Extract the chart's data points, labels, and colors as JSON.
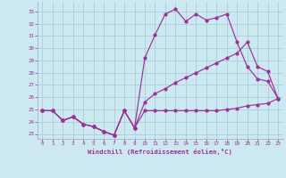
{
  "xlabel": "Windchill (Refroidissement éolien,°C)",
  "background_color": "#cce8f0",
  "grid_color": "#b0d0dc",
  "line_color": "#993399",
  "xlim": [
    -0.5,
    23.5
  ],
  "ylim": [
    22.6,
    33.8
  ],
  "xticks": [
    0,
    1,
    2,
    3,
    4,
    5,
    6,
    7,
    8,
    9,
    10,
    11,
    12,
    13,
    14,
    15,
    16,
    17,
    18,
    19,
    20,
    21,
    22,
    23
  ],
  "yticks": [
    23,
    24,
    25,
    26,
    27,
    28,
    29,
    30,
    31,
    32,
    33
  ],
  "line1_x": [
    0,
    1,
    2,
    3,
    4,
    5,
    6,
    7,
    8,
    9,
    10,
    11,
    12,
    13,
    14,
    15,
    16,
    17,
    18,
    19,
    20,
    21,
    22,
    23
  ],
  "line1_y": [
    24.9,
    24.9,
    24.1,
    24.4,
    23.8,
    23.6,
    23.2,
    22.9,
    24.9,
    23.5,
    24.9,
    24.9,
    24.9,
    24.9,
    24.9,
    24.9,
    24.9,
    24.9,
    25.0,
    25.1,
    25.3,
    25.4,
    25.5,
    25.9
  ],
  "line2_x": [
    0,
    1,
    2,
    3,
    4,
    5,
    6,
    7,
    8,
    9,
    10,
    11,
    12,
    13,
    14,
    15,
    16,
    17,
    18,
    19,
    20,
    21,
    22,
    23
  ],
  "line2_y": [
    24.9,
    24.9,
    24.1,
    24.4,
    23.8,
    23.6,
    23.2,
    22.9,
    24.9,
    23.5,
    25.6,
    26.3,
    26.7,
    27.2,
    27.6,
    28.0,
    28.4,
    28.8,
    29.2,
    29.6,
    30.5,
    28.5,
    28.1,
    25.9
  ],
  "line3_x": [
    0,
    1,
    2,
    3,
    4,
    5,
    6,
    7,
    8,
    9,
    10,
    11,
    12,
    13,
    14,
    15,
    16,
    17,
    18,
    19,
    20,
    21,
    22,
    23
  ],
  "line3_y": [
    24.9,
    24.9,
    24.1,
    24.4,
    23.8,
    23.6,
    23.2,
    22.9,
    24.9,
    23.5,
    29.2,
    31.1,
    32.8,
    33.2,
    32.2,
    32.8,
    32.3,
    32.5,
    32.8,
    30.5,
    28.5,
    27.5,
    27.3,
    25.9
  ]
}
